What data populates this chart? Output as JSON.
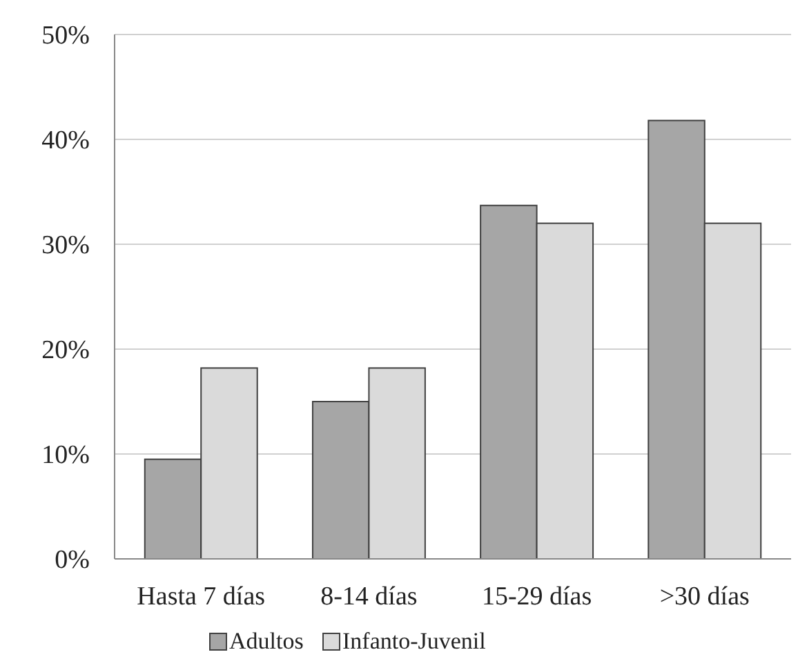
{
  "chart_data": {
    "type": "bar",
    "categories": [
      "Hasta 7 días",
      "8-14 días",
      "15-29 días",
      ">30 días"
    ],
    "series": [
      {
        "name": "Adultos",
        "color": "#a6a6a6",
        "values": [
          9.5,
          15,
          33.7,
          41.8
        ]
      },
      {
        "name": "Infanto-Juvenil",
        "color": "#dadada",
        "values": [
          18.2,
          18.2,
          32,
          32
        ]
      }
    ],
    "ylim": [
      0,
      50
    ],
    "yticks": [
      {
        "value": 0,
        "label": "0%"
      },
      {
        "value": 10,
        "label": "10%"
      },
      {
        "value": 20,
        "label": "20%"
      },
      {
        "value": 30,
        "label": "30%"
      },
      {
        "value": 40,
        "label": "40%"
      },
      {
        "value": 50,
        "label": "50%"
      }
    ],
    "grid": "y",
    "legend": "bottom"
  }
}
